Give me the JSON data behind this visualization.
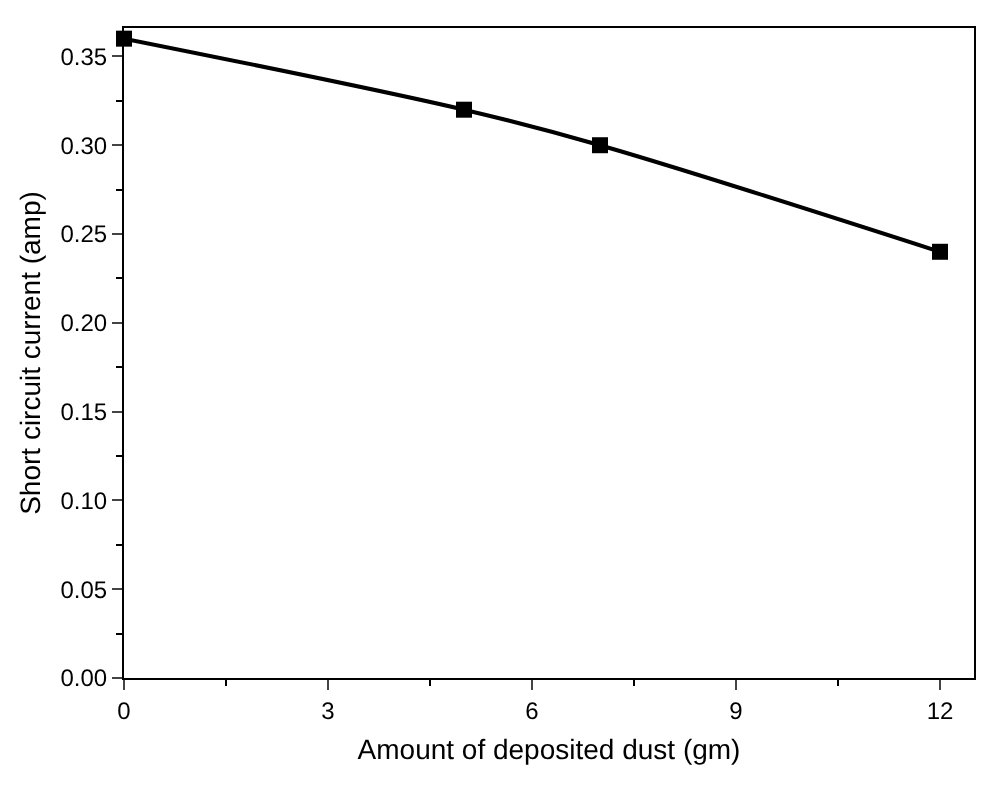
{
  "chart_data": {
    "type": "line",
    "xlabel": "Amount of deposited dust (gm)",
    "ylabel": "Short circuit current (amp)",
    "x": [
      0,
      5,
      7,
      12
    ],
    "series": [
      {
        "color": "#000000",
        "values": [
          0.36,
          0.32,
          0.3,
          0.24
        ]
      }
    ],
    "xlim": [
      0,
      12.5
    ],
    "xticks": [
      0,
      3,
      6,
      9,
      12
    ],
    "ylim": [
      0,
      0.366
    ],
    "yticks": [
      {
        "value": 0,
        "label": "0.00"
      },
      {
        "value": 0.05,
        "label": "0.05"
      },
      {
        "value": 0.1,
        "label": "0.10"
      },
      {
        "value": 0.15,
        "label": "0.15"
      },
      {
        "value": 0.2,
        "label": "0.20"
      },
      {
        "value": 0.25,
        "label": "0.25"
      },
      {
        "value": 0.3,
        "label": "0.30"
      },
      {
        "value": 0.35,
        "label": "0.35"
      }
    ],
    "marker": "square",
    "line_style": "solid"
  }
}
